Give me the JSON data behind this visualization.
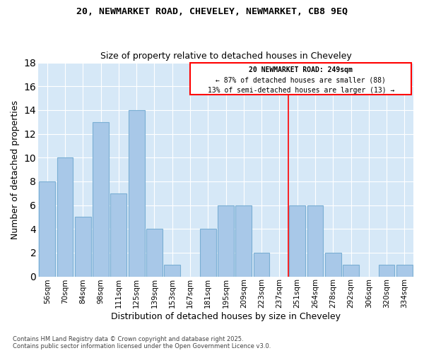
{
  "title": "20, NEWMARKET ROAD, CHEVELEY, NEWMARKET, CB8 9EQ",
  "subtitle": "Size of property relative to detached houses in Cheveley",
  "xlabel": "Distribution of detached houses by size in Cheveley",
  "ylabel": "Number of detached properties",
  "categories": [
    "56sqm",
    "70sqm",
    "84sqm",
    "98sqm",
    "111sqm",
    "125sqm",
    "139sqm",
    "153sqm",
    "167sqm",
    "181sqm",
    "195sqm",
    "209sqm",
    "223sqm",
    "237sqm",
    "251sqm",
    "264sqm",
    "278sqm",
    "292sqm",
    "306sqm",
    "320sqm",
    "334sqm"
  ],
  "values": [
    8,
    10,
    5,
    13,
    7,
    14,
    4,
    1,
    0,
    4,
    6,
    6,
    2,
    0,
    6,
    6,
    2,
    1,
    0,
    1,
    1
  ],
  "bar_color": "#a8c8e8",
  "bar_edgecolor": "#7aafd4",
  "property_line_x": 14,
  "annotation_title": "20 NEWMARKET ROAD: 249sqm",
  "annotation_line1": "← 87% of detached houses are smaller (88)",
  "annotation_line2": "13% of semi-detached houses are larger (13) →",
  "ylim": [
    0,
    18
  ],
  "yticks": [
    0,
    2,
    4,
    6,
    8,
    10,
    12,
    14,
    16,
    18
  ],
  "plot_bg": "#d6e8f7",
  "fig_bg": "#ffffff",
  "footer_line1": "Contains HM Land Registry data © Crown copyright and database right 2025.",
  "footer_line2": "Contains public sector information licensed under the Open Government Licence v3.0."
}
